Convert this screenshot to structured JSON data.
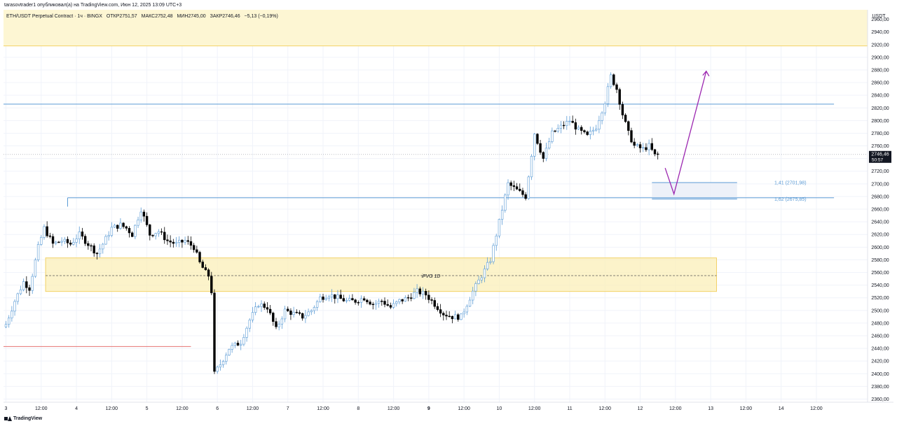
{
  "header": {
    "attribution": "tarasovtrader1 опубликовал(а) на TradingView.com, Июн 12, 2025 13:09 UTC+3"
  },
  "legend": {
    "symbol": "ETH/USDT Perpetual Contract · 1ч · BINGX",
    "open": "ОТКР2751,57",
    "high": "МАКС2752,48",
    "low": "МИН2745,00",
    "close": "ЗАКР2746,46",
    "change": "−5,13 (−0,19%)"
  },
  "footer": {
    "brand": "TradingView"
  },
  "colors": {
    "up_fill": "#ffffff",
    "up_border": "#5b9bd5",
    "down_fill": "#000000",
    "resistance_zone": "#fdf6d3",
    "fvg_zone": "#fbefb8",
    "blue_line": "#5b9bd5",
    "red_line": "#e57373",
    "arrow": "#9c27b0",
    "fib_text": "#5b9bd5"
  },
  "chart_data": {
    "type": "candlestick",
    "currency": "USDT",
    "ylim": [
      2355,
      2975
    ],
    "y_ticks": [
      2360,
      2380,
      2400,
      2420,
      2440,
      2460,
      2480,
      2500,
      2520,
      2540,
      2560,
      2580,
      2600,
      2620,
      2640,
      2660,
      2680,
      2700,
      2720,
      2740,
      2760,
      2780,
      2800,
      2820,
      2840,
      2860,
      2880,
      2900,
      2920,
      2940,
      2960
    ],
    "x_ticks": [
      {
        "h": 0,
        "label": "3",
        "bold": false
      },
      {
        "h": 12,
        "label": "12:00",
        "bold": false
      },
      {
        "h": 24,
        "label": "4",
        "bold": false
      },
      {
        "h": 36,
        "label": "12:00",
        "bold": false
      },
      {
        "h": 48,
        "label": "5",
        "bold": false
      },
      {
        "h": 60,
        "label": "12:00",
        "bold": false
      },
      {
        "h": 72,
        "label": "6",
        "bold": false
      },
      {
        "h": 84,
        "label": "12:00",
        "bold": false
      },
      {
        "h": 96,
        "label": "7",
        "bold": false
      },
      {
        "h": 108,
        "label": "12:00",
        "bold": false
      },
      {
        "h": 120,
        "label": "8",
        "bold": false
      },
      {
        "h": 132,
        "label": "12:00",
        "bold": false
      },
      {
        "h": 144,
        "label": "9",
        "bold": true
      },
      {
        "h": 156,
        "label": "12:00",
        "bold": false
      },
      {
        "h": 168,
        "label": "10",
        "bold": false
      },
      {
        "h": 180,
        "label": "12:00",
        "bold": false
      },
      {
        "h": 192,
        "label": "11",
        "bold": false
      },
      {
        "h": 204,
        "label": "12:00",
        "bold": false
      },
      {
        "h": 216,
        "label": "12",
        "bold": false
      },
      {
        "h": 228,
        "label": "12:00",
        "bold": false
      },
      {
        "h": 240,
        "label": "13",
        "bold": false
      },
      {
        "h": 252,
        "label": "12:00",
        "bold": false
      },
      {
        "h": 264,
        "label": "14",
        "bold": false
      },
      {
        "h": 276,
        "label": "12:00",
        "bold": false
      }
    ],
    "last_price": "2746,46",
    "countdown": "50:57",
    "annotations": {
      "fvg_label": "iFVG 1D",
      "fib_1": "1,41 (2701,98)",
      "fib_2": "1,62 (2675,85)"
    },
    "zones": [
      {
        "name": "resistance-zone",
        "top": 2975,
        "bottom": 2918
      },
      {
        "name": "fvg-zone",
        "top": 2583,
        "bottom": 2530,
        "h_start": 13.5,
        "h_end": 242,
        "mid": 2555
      }
    ],
    "levels": [
      {
        "name": "upper-blue-line",
        "price": 2826,
        "h_start": -5,
        "h_end": 282
      },
      {
        "name": "mid-blue-line",
        "price": 2678,
        "h_start": 21,
        "h_end": 282
      },
      {
        "name": "red-line",
        "price": 2443,
        "h_start": -5,
        "h_end": 63
      },
      {
        "name": "fib-upper-line",
        "price": 2702,
        "h_start": 220,
        "h_end": 249
      },
      {
        "name": "fib-lower-line",
        "price": 2676,
        "h_start": 220,
        "h_end": 249
      }
    ],
    "arrow": {
      "h0": 224.5,
      "p0": 2725,
      "h1": 227.5,
      "p1": 2684,
      "h2": 238.5,
      "p2": 2878
    },
    "anchors": [
      [
        0,
        2478
      ],
      [
        3,
        2515
      ],
      [
        6,
        2545
      ],
      [
        8,
        2535
      ],
      [
        11,
        2600
      ],
      [
        13,
        2630
      ],
      [
        16,
        2605
      ],
      [
        19,
        2610
      ],
      [
        22,
        2605
      ],
      [
        25,
        2620
      ],
      [
        28,
        2605
      ],
      [
        31,
        2590
      ],
      [
        33,
        2605
      ],
      [
        36,
        2630
      ],
      [
        39,
        2635
      ],
      [
        41,
        2630
      ],
      [
        43,
        2620
      ],
      [
        46,
        2660
      ],
      [
        49,
        2620
      ],
      [
        52,
        2625
      ],
      [
        55,
        2610
      ],
      [
        58,
        2605
      ],
      [
        61,
        2610
      ],
      [
        64,
        2600
      ],
      [
        66,
        2575
      ],
      [
        68,
        2560
      ],
      [
        69,
        2555
      ],
      [
        70,
        2530
      ],
      [
        71,
        2400
      ],
      [
        73,
        2415
      ],
      [
        76,
        2440
      ],
      [
        80,
        2450
      ],
      [
        83,
        2485
      ],
      [
        86,
        2510
      ],
      [
        89,
        2505
      ],
      [
        92,
        2470
      ],
      [
        95,
        2500
      ],
      [
        98,
        2495
      ],
      [
        101,
        2490
      ],
      [
        104,
        2500
      ],
      [
        107,
        2520
      ],
      [
        110,
        2525
      ],
      [
        113,
        2520
      ],
      [
        116,
        2515
      ],
      [
        119,
        2515
      ],
      [
        122,
        2520
      ],
      [
        125,
        2510
      ],
      [
        128,
        2515
      ],
      [
        131,
        2505
      ],
      [
        134,
        2515
      ],
      [
        137,
        2520
      ],
      [
        140,
        2530
      ],
      [
        143,
        2525
      ],
      [
        146,
        2510
      ],
      [
        149,
        2495
      ],
      [
        152,
        2490
      ],
      [
        155,
        2490
      ],
      [
        157,
        2510
      ],
      [
        159,
        2530
      ],
      [
        162,
        2555
      ],
      [
        165,
        2580
      ],
      [
        168,
        2640
      ],
      [
        171,
        2700
      ],
      [
        174,
        2690
      ],
      [
        177,
        2680
      ],
      [
        180,
        2780
      ],
      [
        183,
        2740
      ],
      [
        186,
        2780
      ],
      [
        189,
        2790
      ],
      [
        192,
        2800
      ],
      [
        195,
        2785
      ],
      [
        198,
        2775
      ],
      [
        201,
        2790
      ],
      [
        204,
        2830
      ],
      [
        206,
        2870
      ],
      [
        208,
        2850
      ],
      [
        210,
        2810
      ],
      [
        212,
        2780
      ],
      [
        214,
        2760
      ],
      [
        217,
        2755
      ],
      [
        219,
        2760
      ],
      [
        221,
        2745
      ],
      [
        222,
        2746.46
      ]
    ]
  }
}
